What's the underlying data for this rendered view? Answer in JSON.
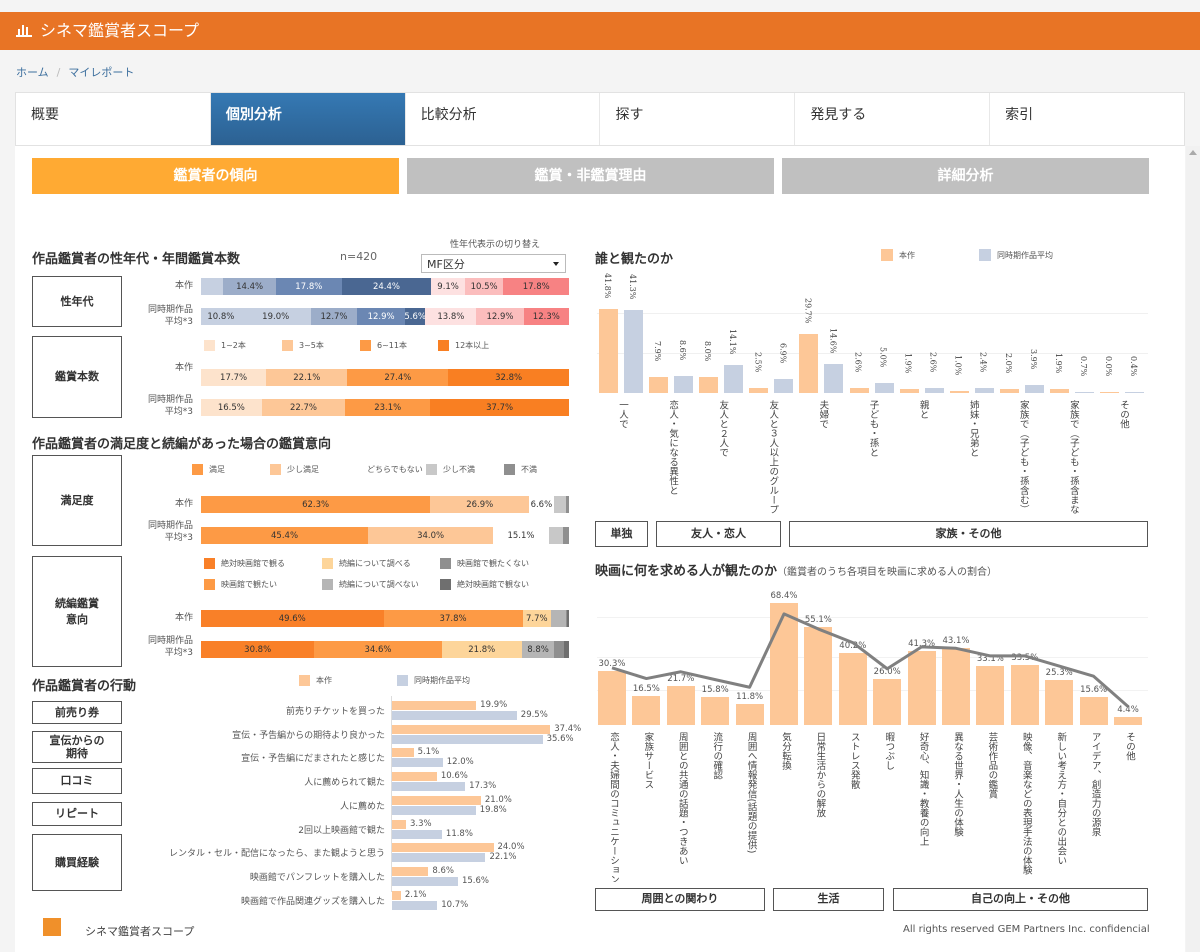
{
  "header": {
    "title": "シネマ鑑賞者スコープ",
    "icon": "bar-chart-icon"
  },
  "breadcrumb": [
    "ホーム",
    "マイレポート"
  ],
  "tabs": [
    "概要",
    "個別分析",
    "比較分析",
    "探す",
    "発見する",
    "索引"
  ],
  "subtabs": [
    "鑑賞者の傾向",
    "鑑賞・非鑑賞理由",
    "詳細分析"
  ],
  "row_labels": {
    "this": "本作",
    "avg1": "同時期作品",
    "avg2": "平均*3"
  },
  "profile": {
    "title": "作品鑑賞者の性年代・年間鑑賞本数",
    "n": "n=420",
    "switch_label": "性年代表示の切り替え",
    "select_value": "MF区分",
    "box_gender": "性年代",
    "box_count": "鑑賞本数",
    "gender_colors": [
      "#c6d0e1",
      "#9cadc9",
      "#6b87b3",
      "#4a6792",
      "#fde1e1",
      "#fbbdbd",
      "#f78283"
    ],
    "gender_rows": [
      [
        6.0,
        14.4,
        17.8,
        24.4,
        9.1,
        10.5,
        17.8
      ],
      [
        10.8,
        19.0,
        12.7,
        12.9,
        5.6,
        13.8,
        12.9,
        12.3
      ]
    ],
    "gender_hidden_first": true,
    "count_legend": [
      "1~2本",
      "3~5本",
      "6~11本",
      "12本以上"
    ],
    "count_colors": [
      "#fde3cc",
      "#fdc797",
      "#fd9a45",
      "#f97f22"
    ],
    "count_rows": [
      [
        17.7,
        22.1,
        27.4,
        32.8
      ],
      [
        16.5,
        22.7,
        23.1,
        37.7
      ]
    ]
  },
  "satisfaction": {
    "title": "作品鑑賞者の満足度と続編があった場合の鑑賞意向",
    "box_sat": "満足度",
    "box_seq1": "続編鑑賞",
    "box_seq2": "意向",
    "sat_legend": [
      "満足",
      "少し満足",
      "どちらでもない",
      "少し不満",
      "不満"
    ],
    "sat_colors": [
      "#fd9a45",
      "#fdc797",
      "transparent",
      "#c8c8c8",
      "#8f8f8f"
    ],
    "sat_rows": [
      [
        62.3,
        26.9,
        6.6,
        3.5,
        0.7
      ],
      [
        45.4,
        34.0,
        15.1,
        4.0,
        1.5
      ]
    ],
    "seq_legend": [
      "絶対映画館で観る",
      "映画館で観たい",
      "続編について調べる",
      "続編について調べない",
      "映画館で観たくない",
      "絶対映画館で観ない"
    ],
    "seq_colors": [
      "#f98028",
      "#fd9a45",
      "#fdd59a",
      "#b5b5b5",
      "#8f8f8f",
      "#6f6f6f"
    ],
    "seq_rows": [
      [
        49.6,
        37.8,
        7.7,
        4.0,
        0.5,
        0.4
      ],
      [
        30.8,
        34.6,
        21.8,
        8.8,
        2.7,
        1.3
      ]
    ]
  },
  "behavior": {
    "title": "作品鑑賞者の行動",
    "legend": [
      "本作",
      "同時期作品平均"
    ],
    "colors": [
      "#fdc797",
      "#c6d0e1"
    ],
    "boxes": [
      "前売り券",
      "宣伝からの",
      "期待",
      "口コミ",
      "リピート",
      "購買経験"
    ],
    "items": [
      {
        "label": "前売りチケットを買った",
        "this": 19.9,
        "avg": 29.5
      },
      {
        "label": "宣伝・予告編からの期待より良かった",
        "this": 37.4,
        "avg": 35.6
      },
      {
        "label": "宣伝・予告編にだまされたと感じた",
        "this": 5.1,
        "avg": 12.0
      },
      {
        "label": "人に薦められて観た",
        "this": 10.6,
        "avg": 17.3
      },
      {
        "label": "人に薦めた",
        "this": 21.0,
        "avg": 19.8
      },
      {
        "label": "2回以上映画館で観た",
        "this": 3.3,
        "avg": 11.8
      },
      {
        "label": "レンタル・セル・配信になったら、また観ようと思う",
        "this": 24.0,
        "avg": 22.1
      },
      {
        "label": "映画館でパンフレットを購入した",
        "this": 8.6,
        "avg": 15.6
      },
      {
        "label": "映画館で作品関連グッズを購入した",
        "this": 2.1,
        "avg": 10.7
      }
    ]
  },
  "chart_data": [
    {
      "type": "bar",
      "title": "誰と観たのか",
      "legend": [
        "本作",
        "同時期作品平均"
      ],
      "colors": [
        "#fdc797",
        "#c6d0e1"
      ],
      "categories": [
        "一人で",
        "恋人・気になる異性と",
        "友人と２人で",
        "友人と３人以上のグループで",
        "夫婦で",
        "子ども・孫と",
        "親と",
        "姉妹・兄弟と",
        "家族で（子ども・孫含む）",
        "家族で（子ども・孫含まない）",
        "その他"
      ],
      "series": [
        {
          "name": "本作",
          "values": [
            41.8,
            7.9,
            8.0,
            2.5,
            29.7,
            2.6,
            1.9,
            1.0,
            2.0,
            1.9,
            0.0
          ]
        },
        {
          "name": "同時期作品平均",
          "values": [
            41.3,
            8.6,
            14.1,
            6.9,
            14.6,
            5.0,
            2.6,
            2.4,
            3.9,
            0.7,
            0.4
          ]
        }
      ],
      "ylim": [
        0,
        45
      ],
      "groups": [
        "単独",
        "友人・恋人",
        "家族・その他"
      ]
    },
    {
      "type": "bar",
      "title": "映画に何を求める人が観たのか",
      "subtitle": "（鑑賞者のうち各項目を映画に求める人の割合）",
      "colors": [
        "#fdc797",
        "#808080"
      ],
      "categories": [
        "恋人・夫婦間のコミュニケーション",
        "家族サービス",
        "周囲との共通の話題・つきあい",
        "流行の確認",
        "周囲へ情報発信(話題の提供)",
        "気分転換",
        "日常生活からの解放",
        "ストレス発散",
        "暇つぶし",
        "好奇心、知識・教養の向上",
        "異なる世界・人生の体験",
        "芸術作品の鑑賞",
        "映像、音楽などの表現手法の体験",
        "新しい考え方・自分との出会い",
        "アイデア、創造力の源泉",
        "その他"
      ],
      "series": [
        {
          "name": "本作",
          "values": [
            30.3,
            16.5,
            21.7,
            15.8,
            11.8,
            68.4,
            55.1,
            40.2,
            26.0,
            41.3,
            43.1,
            33.1,
            33.5,
            25.3,
            15.6,
            4.4
          ]
        },
        {
          "name": "同時期作品平均",
          "values": [
            32.1,
            26.1,
            29.9,
            25.5,
            21.2,
            62.4,
            53.9,
            46.3,
            31.6,
            43.9,
            43.1,
            38.8,
            38.8,
            33.1,
            27.4,
            10.4
          ]
        }
      ],
      "ylim": [
        0,
        75
      ],
      "groups": [
        "周囲との関わり",
        "生活",
        "自己の向上・その他"
      ]
    }
  ],
  "footer": {
    "brand": "シネマ鑑賞者スコープ",
    "logo": "GEM Partners",
    "copyright": "All rights reserved GEM Partners Inc. confidencial"
  }
}
